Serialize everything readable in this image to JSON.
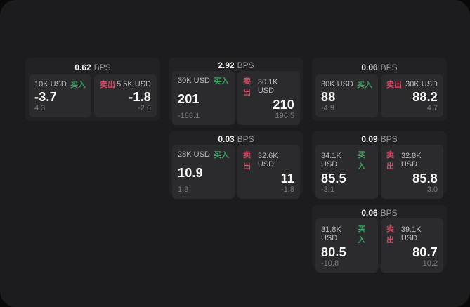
{
  "window": {
    "background": "#1c1c1e",
    "backdrop": "#09090a"
  },
  "colors": {
    "card_bg": "#222224",
    "panel_bg": "#2b2b2d",
    "buy_accent": "#36a05c",
    "sell_accent": "#d14b64",
    "text_primary": "#fafafa",
    "text_label": "#b9b9be",
    "text_muted": "#7c7c81"
  },
  "labels": {
    "bps_suffix": "BPS",
    "buy": "买入",
    "sell": "卖出"
  },
  "cards": [
    {
      "bps": "0.62",
      "buy": {
        "size": "10K USD",
        "value": "-3.7",
        "sub": "4.3"
      },
      "sell": {
        "size": "5.5K USD",
        "value": "-1.8",
        "sub": "-2.6"
      }
    },
    {
      "bps": "2.92",
      "buy": {
        "size": "30K USD",
        "value": "201",
        "sub": "-188.1"
      },
      "sell": {
        "size": "30.1K USD",
        "value": "210",
        "sub": "196.5"
      }
    },
    {
      "bps": "0.06",
      "buy": {
        "size": "30K USD",
        "value": "88",
        "sub": "-4.9"
      },
      "sell": {
        "size": "30K USD",
        "value": "88.2",
        "sub": "4.7"
      }
    },
    {
      "bps": "0.03",
      "buy": {
        "size": "28K USD",
        "value": "10.9",
        "sub": "1.3"
      },
      "sell": {
        "size": "32.6K USD",
        "value": "11",
        "sub": "-1.8"
      }
    },
    {
      "bps": "0.09",
      "buy": {
        "size": "34.1K USD",
        "value": "85.5",
        "sub": "-3.1"
      },
      "sell": {
        "size": "32.8K USD",
        "value": "85.8",
        "sub": "3.0"
      }
    },
    {
      "bps": "0.06",
      "buy": {
        "size": "31.8K USD",
        "value": "80.5",
        "sub": "-10.8"
      },
      "sell": {
        "size": "39.1K USD",
        "value": "80.7",
        "sub": "10.2"
      }
    }
  ]
}
